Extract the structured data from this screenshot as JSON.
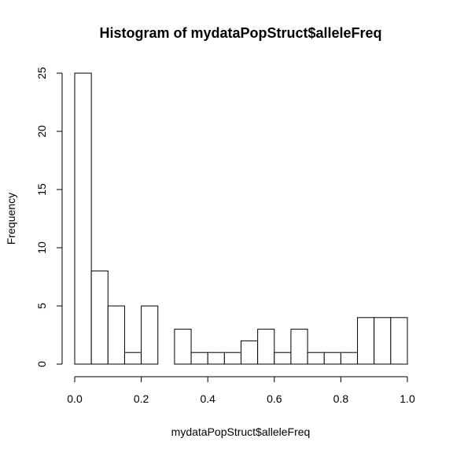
{
  "chart_data": {
    "type": "bar",
    "title": "Histogram of mydataPopStruct$alleleFreq",
    "xlabel": "mydataPopStruct$alleleFreq",
    "ylabel": "Frequency",
    "bin_edges": [
      0.0,
      0.05,
      0.1,
      0.15,
      0.2,
      0.25,
      0.3,
      0.35,
      0.4,
      0.45,
      0.5,
      0.55,
      0.6,
      0.65,
      0.7,
      0.75,
      0.8,
      0.85,
      0.9,
      0.95,
      1.0
    ],
    "values": [
      25,
      8,
      5,
      1,
      5,
      0,
      3,
      1,
      1,
      1,
      2,
      3,
      1,
      3,
      1,
      1,
      1,
      4,
      4,
      4
    ],
    "xlim": [
      0,
      1
    ],
    "ylim": [
      0,
      25
    ],
    "x_ticks": [
      "0.0",
      "0.2",
      "0.4",
      "0.6",
      "0.8",
      "1.0"
    ],
    "y_ticks": [
      "0",
      "5",
      "10",
      "15",
      "20",
      "25"
    ],
    "grid": false
  }
}
